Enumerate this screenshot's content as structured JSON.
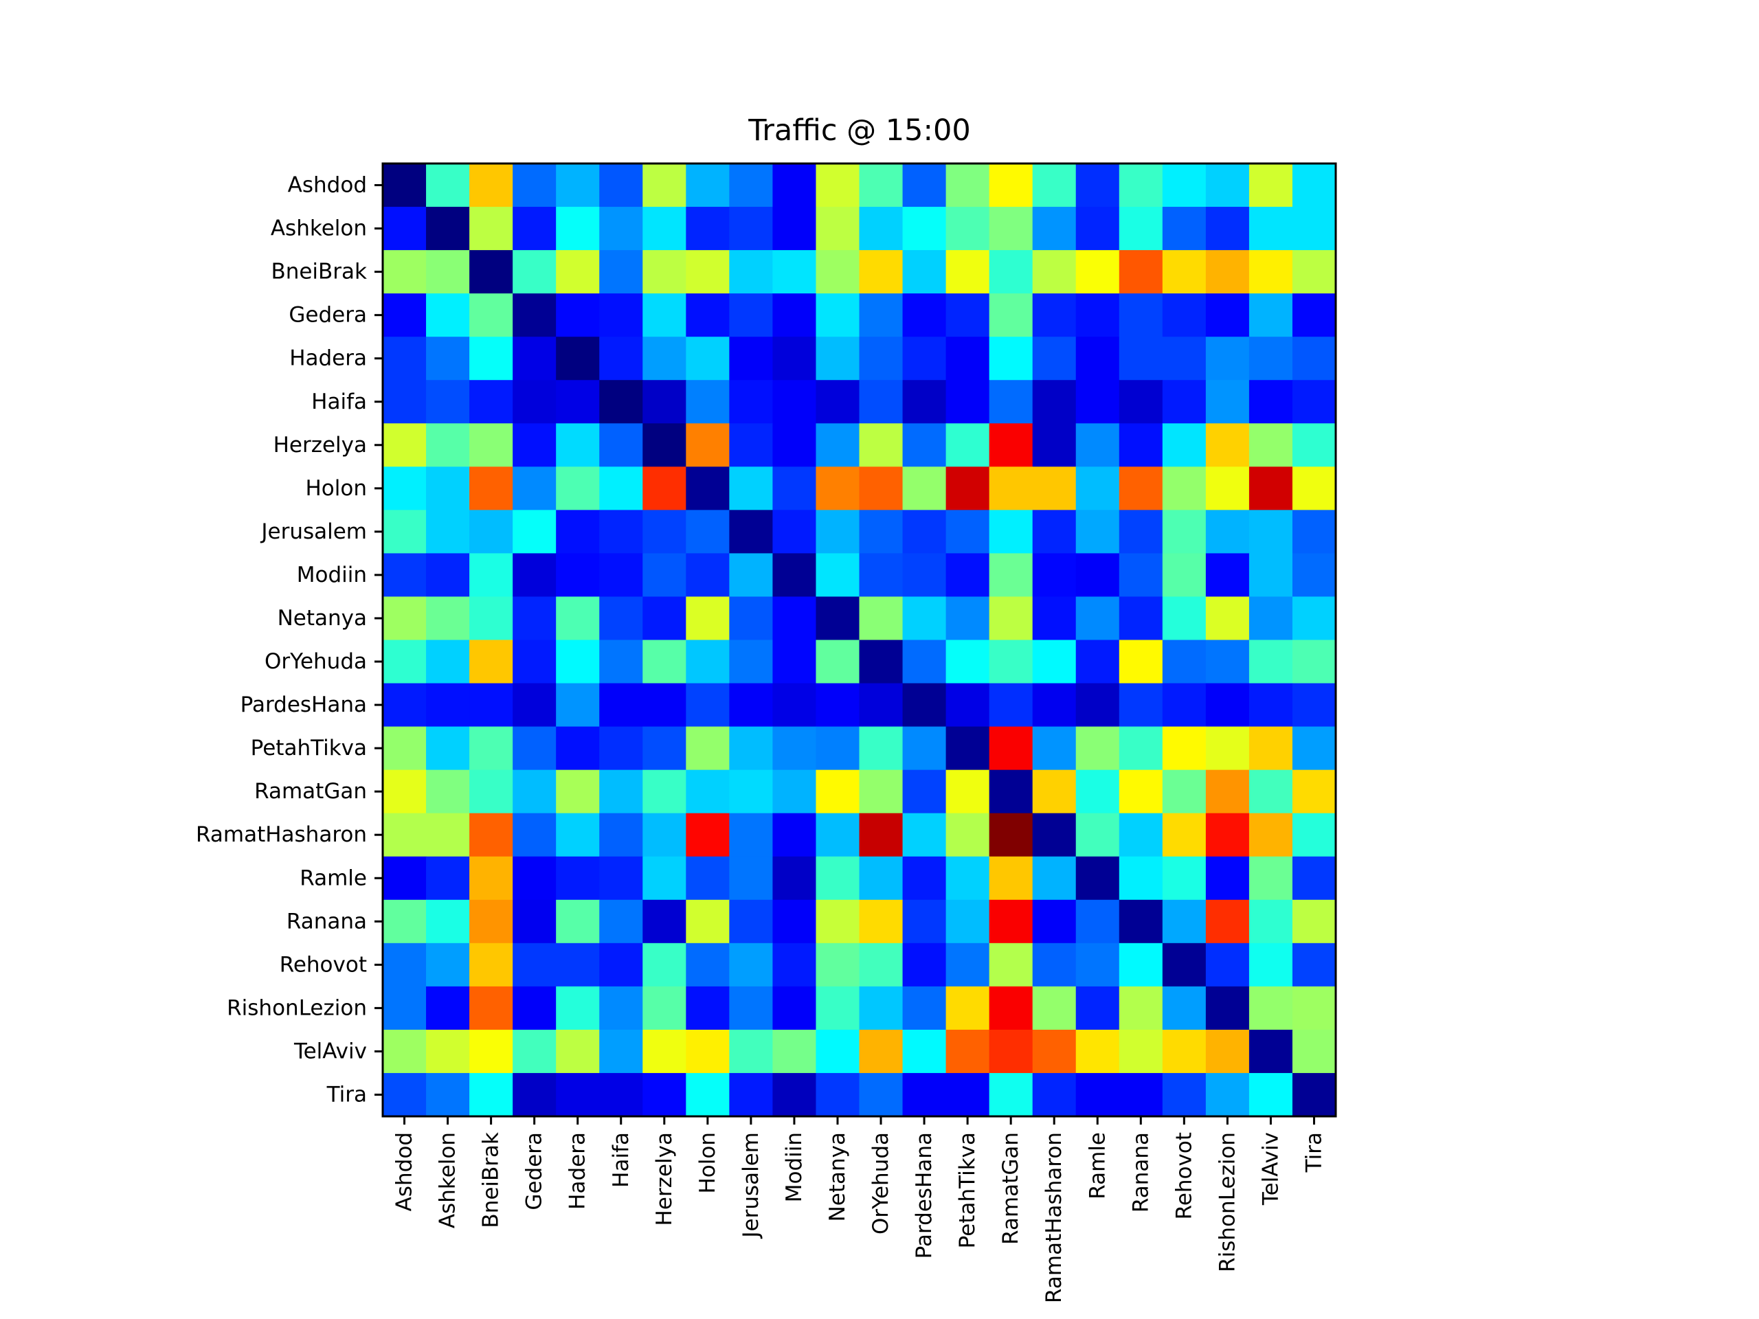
{
  "chart_data": {
    "type": "heatmap",
    "title": "Traffic @ 15:00",
    "xlabel": "",
    "ylabel": "",
    "colormap": "jet",
    "value_range": [
      0,
      1
    ],
    "grid": false,
    "colorbar": false,
    "rows": [
      "Ashdod",
      "Ashkelon",
      "BneiBrak",
      "Gedera",
      "Hadera",
      "Haifa",
      "Herzelya",
      "Holon",
      "Jerusalem",
      "Modiin",
      "Netanya",
      "OrYehuda",
      "PardesHana",
      "PetahTikva",
      "RamatGan",
      "RamatHasharon",
      "Ramle",
      "Ranana",
      "Rehovot",
      "RishonLezion",
      "TelAviv",
      "Tira"
    ],
    "columns": [
      "Ashdod",
      "Ashkelon",
      "BneiBrak",
      "Gedera",
      "Hadera",
      "Haifa",
      "Herzelya",
      "Holon",
      "Jerusalem",
      "Modiin",
      "Netanya",
      "OrYehuda",
      "PardesHana",
      "PetahTikva",
      "RamatGan",
      "RamatHasharon",
      "Ramle",
      "Ranana",
      "Rehovot",
      "RishonLezion",
      "TelAviv",
      "Tira"
    ],
    "values": [
      [
        0.0,
        0.43,
        0.68,
        0.23,
        0.3,
        0.21,
        0.56,
        0.3,
        0.24,
        0.12,
        0.58,
        0.45,
        0.22,
        0.5,
        0.63,
        0.43,
        0.17,
        0.43,
        0.36,
        0.33,
        0.58,
        0.35
      ],
      [
        0.14,
        0.0,
        0.56,
        0.15,
        0.38,
        0.27,
        0.35,
        0.16,
        0.18,
        0.12,
        0.56,
        0.33,
        0.38,
        0.45,
        0.5,
        0.27,
        0.16,
        0.4,
        0.22,
        0.17,
        0.35,
        0.35
      ],
      [
        0.53,
        0.51,
        0.0,
        0.43,
        0.58,
        0.24,
        0.56,
        0.58,
        0.33,
        0.35,
        0.53,
        0.66,
        0.33,
        0.61,
        0.42,
        0.56,
        0.62,
        0.79,
        0.66,
        0.7,
        0.64,
        0.56
      ],
      [
        0.13,
        0.36,
        0.47,
        0.02,
        0.13,
        0.14,
        0.34,
        0.14,
        0.18,
        0.12,
        0.35,
        0.24,
        0.13,
        0.16,
        0.47,
        0.16,
        0.14,
        0.19,
        0.16,
        0.13,
        0.3,
        0.13
      ],
      [
        0.18,
        0.24,
        0.38,
        0.1,
        0.0,
        0.15,
        0.28,
        0.33,
        0.12,
        0.09,
        0.31,
        0.22,
        0.16,
        0.12,
        0.37,
        0.2,
        0.12,
        0.19,
        0.19,
        0.26,
        0.24,
        0.21
      ],
      [
        0.18,
        0.2,
        0.15,
        0.09,
        0.1,
        0.0,
        0.07,
        0.25,
        0.14,
        0.12,
        0.09,
        0.2,
        0.07,
        0.12,
        0.23,
        0.07,
        0.12,
        0.08,
        0.15,
        0.27,
        0.13,
        0.15
      ],
      [
        0.58,
        0.46,
        0.51,
        0.14,
        0.34,
        0.22,
        0.0,
        0.75,
        0.16,
        0.12,
        0.27,
        0.56,
        0.23,
        0.42,
        0.88,
        0.07,
        0.26,
        0.14,
        0.35,
        0.67,
        0.52,
        0.42
      ],
      [
        0.36,
        0.33,
        0.78,
        0.26,
        0.45,
        0.36,
        0.83,
        0.02,
        0.33,
        0.18,
        0.75,
        0.78,
        0.52,
        0.92,
        0.68,
        0.68,
        0.31,
        0.78,
        0.52,
        0.61,
        0.92,
        0.61
      ],
      [
        0.43,
        0.33,
        0.31,
        0.38,
        0.14,
        0.16,
        0.19,
        0.22,
        0.02,
        0.15,
        0.3,
        0.22,
        0.18,
        0.22,
        0.36,
        0.16,
        0.29,
        0.19,
        0.45,
        0.3,
        0.31,
        0.22
      ],
      [
        0.18,
        0.16,
        0.4,
        0.09,
        0.13,
        0.14,
        0.21,
        0.17,
        0.3,
        0.02,
        0.35,
        0.2,
        0.19,
        0.14,
        0.48,
        0.13,
        0.12,
        0.21,
        0.46,
        0.13,
        0.31,
        0.23
      ],
      [
        0.53,
        0.48,
        0.42,
        0.16,
        0.45,
        0.19,
        0.15,
        0.59,
        0.21,
        0.13,
        0.02,
        0.51,
        0.33,
        0.26,
        0.56,
        0.14,
        0.26,
        0.16,
        0.41,
        0.59,
        0.27,
        0.33
      ],
      [
        0.42,
        0.33,
        0.68,
        0.15,
        0.37,
        0.24,
        0.46,
        0.32,
        0.24,
        0.13,
        0.47,
        0.02,
        0.23,
        0.38,
        0.43,
        0.37,
        0.15,
        0.63,
        0.23,
        0.24,
        0.43,
        0.45
      ],
      [
        0.15,
        0.14,
        0.14,
        0.09,
        0.27,
        0.12,
        0.12,
        0.19,
        0.12,
        0.1,
        0.12,
        0.09,
        0.02,
        0.1,
        0.17,
        0.11,
        0.07,
        0.18,
        0.15,
        0.12,
        0.15,
        0.17
      ],
      [
        0.52,
        0.33,
        0.45,
        0.22,
        0.14,
        0.17,
        0.2,
        0.52,
        0.31,
        0.26,
        0.25,
        0.43,
        0.26,
        0.02,
        0.88,
        0.27,
        0.51,
        0.43,
        0.63,
        0.6,
        0.67,
        0.28
      ],
      [
        0.6,
        0.5,
        0.43,
        0.31,
        0.54,
        0.31,
        0.43,
        0.33,
        0.34,
        0.3,
        0.63,
        0.52,
        0.19,
        0.61,
        0.02,
        0.67,
        0.4,
        0.63,
        0.48,
        0.73,
        0.44,
        0.66
      ],
      [
        0.55,
        0.55,
        0.78,
        0.22,
        0.33,
        0.22,
        0.31,
        0.87,
        0.24,
        0.12,
        0.31,
        0.93,
        0.33,
        0.55,
        1.0,
        0.02,
        0.44,
        0.33,
        0.66,
        0.86,
        0.7,
        0.41
      ],
      [
        0.12,
        0.16,
        0.7,
        0.12,
        0.15,
        0.16,
        0.33,
        0.2,
        0.24,
        0.07,
        0.43,
        0.31,
        0.15,
        0.33,
        0.68,
        0.3,
        0.02,
        0.36,
        0.4,
        0.13,
        0.48,
        0.18
      ],
      [
        0.47,
        0.4,
        0.73,
        0.11,
        0.46,
        0.24,
        0.08,
        0.58,
        0.19,
        0.12,
        0.57,
        0.66,
        0.18,
        0.31,
        0.88,
        0.12,
        0.22,
        0.02,
        0.29,
        0.83,
        0.42,
        0.56
      ],
      [
        0.24,
        0.28,
        0.68,
        0.18,
        0.18,
        0.15,
        0.43,
        0.23,
        0.28,
        0.15,
        0.47,
        0.44,
        0.14,
        0.24,
        0.55,
        0.22,
        0.24,
        0.37,
        0.02,
        0.17,
        0.39,
        0.19
      ],
      [
        0.24,
        0.13,
        0.78,
        0.12,
        0.41,
        0.26,
        0.46,
        0.14,
        0.24,
        0.12,
        0.43,
        0.32,
        0.23,
        0.66,
        0.88,
        0.52,
        0.16,
        0.55,
        0.28,
        0.02,
        0.52,
        0.53
      ],
      [
        0.53,
        0.58,
        0.62,
        0.44,
        0.56,
        0.28,
        0.61,
        0.64,
        0.44,
        0.49,
        0.37,
        0.7,
        0.37,
        0.78,
        0.83,
        0.78,
        0.65,
        0.58,
        0.66,
        0.7,
        0.02,
        0.52
      ],
      [
        0.2,
        0.24,
        0.38,
        0.07,
        0.1,
        0.1,
        0.13,
        0.38,
        0.15,
        0.06,
        0.18,
        0.23,
        0.12,
        0.12,
        0.39,
        0.16,
        0.12,
        0.12,
        0.19,
        0.29,
        0.37,
        0.02
      ]
    ]
  }
}
